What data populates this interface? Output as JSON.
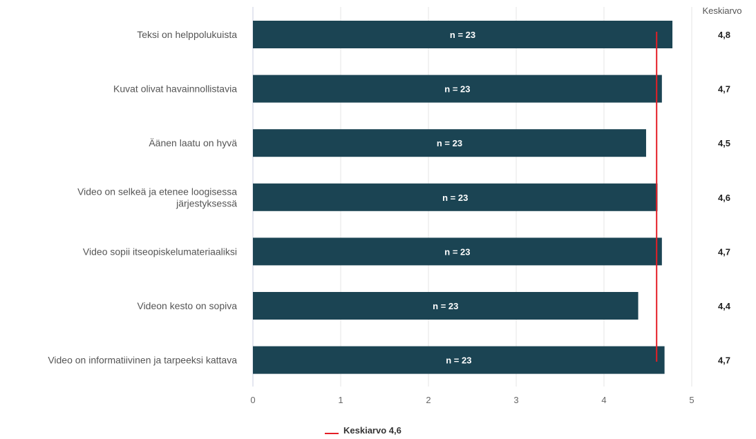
{
  "chart_data": {
    "type": "bar",
    "orientation": "horizontal",
    "categories": [
      [
        "Teksi on helppolukuista"
      ],
      [
        "Kuvat olivat havainnollistavia"
      ],
      [
        "Äänen laatu on hyvä"
      ],
      [
        "Video on selkeä ja etenee loogisessa",
        "järjestyksessä"
      ],
      [
        "Video sopii itseopiskelumateriaaliksi"
      ],
      [
        "Videon kesto on sopiva"
      ],
      [
        "Video on informatiivinen ja tarpeeksi kattava"
      ]
    ],
    "values": [
      4.78,
      4.66,
      4.48,
      4.61,
      4.66,
      4.39,
      4.69
    ],
    "bar_labels": [
      "n = 23",
      "n = 23",
      "n = 23",
      "n = 23",
      "n = 23",
      "n = 23",
      "n = 23"
    ],
    "value_column": {
      "header": "Keskiarvo",
      "values": [
        "4,8",
        "4,7",
        "4,5",
        "4,6",
        "4,7",
        "4,4",
        "4,7"
      ]
    },
    "reference_line": {
      "value": 4.6,
      "legend_label": "Keskiarvo 4,6",
      "color": "#e41e26"
    },
    "xlim": [
      0,
      5
    ],
    "xticks": [
      0,
      1,
      2,
      3,
      4,
      5
    ],
    "xtick_labels": [
      "0",
      "1",
      "2",
      "3",
      "4",
      "5"
    ],
    "grid": true,
    "legend_position": "bottom",
    "bar_color": "#1b4453",
    "title": "",
    "xlabel": "",
    "ylabel": ""
  }
}
